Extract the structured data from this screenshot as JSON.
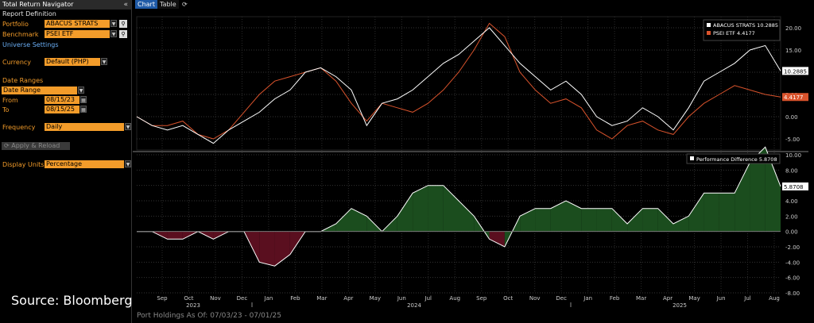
{
  "panel": {
    "title": "Total Return Navigator",
    "report_definition": "Report Definition",
    "portfolio_label": "Portfolio",
    "portfolio_value": "ABACUS STRATS",
    "benchmark_label": "Benchmark",
    "benchmark_value": "PSEI ETF",
    "universe_settings": "Universe Settings",
    "currency_label": "Currency",
    "currency_value": "Default (PHP)",
    "date_ranges_label": "Date Ranges",
    "date_range_value": "Date Range",
    "from_label": "From",
    "from_value": "08/15/23",
    "to_label": "To",
    "to_value": "08/15/25",
    "frequency_label": "Frequency",
    "frequency_value": "Daily",
    "apply_label": "Apply & Reload",
    "display_units_label": "Display Units",
    "display_units_value": "Percentage"
  },
  "tabs": {
    "chart": "Chart",
    "table": "Table"
  },
  "source_text": "Source: Bloomberg",
  "footer_text": "Port Holdings As Of: 07/03/23 - 07/01/25",
  "colors": {
    "portfolio": "#ffffff",
    "benchmark": "#d9532c",
    "pos_fill": "#1b4d1e",
    "neg_fill": "#5a0f1f",
    "accent": "#f39c2a"
  },
  "chart_data": [
    {
      "type": "line",
      "legend": [
        "ABACUS STRATS 10.2885",
        "PSEI ETF 4.4177"
      ],
      "series": [
        {
          "name": "ABACUS STRATS",
          "last": "10.2885",
          "values": [
            0,
            -2,
            -3,
            -2,
            -4,
            -6,
            -3,
            -1,
            1,
            4,
            6,
            10,
            11,
            9,
            6,
            -2,
            3,
            4,
            6,
            9,
            12,
            14,
            17,
            20,
            16,
            12,
            9,
            6,
            8,
            5,
            0,
            -2,
            -1,
            2,
            0,
            -3,
            2,
            8,
            10,
            12,
            15,
            16,
            10.29
          ]
        },
        {
          "name": "PSEI ETF",
          "last": "4.4177",
          "values": [
            0,
            -2,
            -2,
            -1,
            -4,
            -5,
            -3,
            1,
            5,
            8,
            9,
            10,
            11,
            8,
            3,
            -1,
            3,
            2,
            1,
            3,
            6,
            10,
            15,
            21,
            18,
            10,
            6,
            3,
            4,
            2,
            -3,
            -5,
            -2,
            -1,
            -3,
            -4,
            0,
            3,
            5,
            7,
            6,
            5,
            4.42
          ]
        }
      ],
      "ylim": [
        -7.5,
        22.5
      ],
      "yticks": [
        "20.00",
        "15.00",
        "10.00",
        "5.00",
        "0.00",
        "-5.00"
      ],
      "legend_position": "top-right"
    },
    {
      "type": "area",
      "legend": [
        "Performance Difference 5.8708"
      ],
      "series": [
        {
          "name": "Performance Difference",
          "last": "5.8708",
          "values": [
            0,
            0,
            -1,
            -1,
            0,
            -1,
            0,
            0,
            -4,
            -4.5,
            -3,
            0,
            0,
            1,
            3,
            2,
            0,
            2,
            5,
            6,
            6,
            4,
            2,
            -1,
            -2,
            2,
            3,
            3,
            4,
            3,
            3,
            3,
            1,
            3,
            3,
            1,
            2,
            5,
            5,
            5,
            9,
            11,
            5.87
          ]
        }
      ],
      "ylim": [
        -8,
        10
      ],
      "yticks": [
        "10.00",
        "8.00",
        "6.00",
        "4.00",
        "2.00",
        "0.00",
        "-2.00",
        "-4.00",
        "-6.00",
        "-8.00"
      ],
      "legend_position": "top-right"
    }
  ],
  "x_axis": {
    "months": [
      "Sep",
      "Oct",
      "Nov",
      "Dec",
      "Jan",
      "Feb",
      "Mar",
      "Apr",
      "May",
      "Jun",
      "Jul",
      "Aug",
      "Sep",
      "Oct",
      "Nov",
      "Dec",
      "Jan",
      "Feb",
      "Mar",
      "Apr",
      "May",
      "Jun",
      "Jul",
      "Aug"
    ],
    "years": [
      "2023",
      "2024",
      "2025"
    ]
  }
}
